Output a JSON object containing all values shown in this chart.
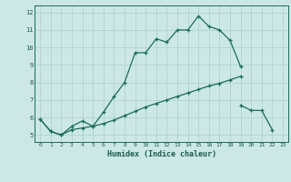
{
  "xlabel": "Humidex (Indice chaleur)",
  "bg_color": "#cce8e5",
  "grid_color": "#a8d0cc",
  "line_color": "#1a6b5a",
  "xlim": [
    -0.5,
    23.5
  ],
  "ylim": [
    4.6,
    12.4
  ],
  "xticks": [
    0,
    1,
    2,
    3,
    4,
    5,
    6,
    7,
    8,
    9,
    10,
    11,
    12,
    13,
    14,
    15,
    16,
    17,
    18,
    19,
    20,
    21,
    22,
    23
  ],
  "yticks": [
    5,
    6,
    7,
    8,
    9,
    10,
    11,
    12
  ],
  "line1_y": [
    5.9,
    5.2,
    5.0,
    5.5,
    5.8,
    5.5,
    6.3,
    7.2,
    8.0,
    9.7,
    9.7,
    10.5,
    10.3,
    11.0,
    11.0,
    11.8,
    11.2,
    11.0,
    10.4,
    8.9,
    null,
    null,
    null,
    null
  ],
  "line2_y": [
    5.9,
    5.2,
    5.0,
    5.3,
    5.4,
    5.5,
    5.65,
    5.85,
    6.1,
    6.35,
    6.6,
    6.8,
    7.0,
    7.2,
    7.4,
    7.6,
    7.8,
    7.95,
    8.15,
    8.35,
    null,
    null,
    null,
    null
  ],
  "line3_y": [
    null,
    null,
    null,
    null,
    null,
    null,
    null,
    null,
    null,
    null,
    null,
    null,
    null,
    null,
    null,
    null,
    null,
    null,
    null,
    6.7,
    6.4,
    6.4,
    5.3,
    null
  ]
}
